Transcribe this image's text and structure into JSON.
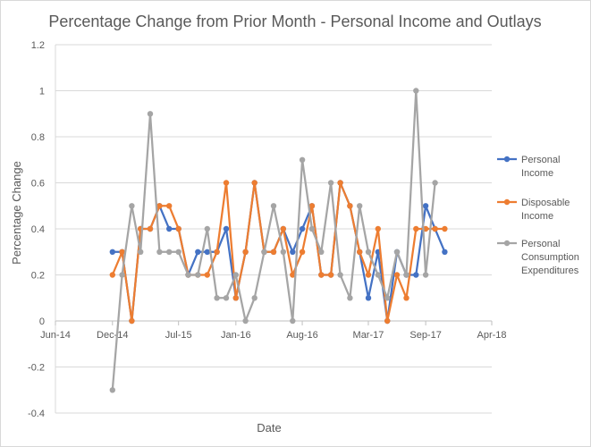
{
  "chart_data": {
    "type": "line",
    "title": "Percentage Change from Prior Month - Personal Income and Outlays",
    "xlabel": "Date",
    "ylabel": "Percentage Change",
    "ylim": [
      -0.4,
      1.2
    ],
    "yticks": [
      -0.4,
      -0.2,
      0,
      0.2,
      0.4,
      0.6,
      0.8,
      1,
      1.2
    ],
    "ytick_labels": [
      "-0.4",
      "-0.2",
      "0",
      "0.2",
      "0.4",
      "0.6",
      "0.8",
      "1",
      "1.2"
    ],
    "xlim": [
      "2014-06-01",
      "2018-04-01"
    ],
    "xticks": [
      "2014-06-01",
      "2014-12-01",
      "2015-07-01",
      "2016-01-01",
      "2016-08-01",
      "2017-03-01",
      "2017-09-01",
      "2018-04-01"
    ],
    "xtick_labels": [
      "Jun-14",
      "Dec-14",
      "Jul-15",
      "Jan-16",
      "Aug-16",
      "Mar-17",
      "Sep-17",
      "Apr-18"
    ],
    "grid": "horizontal",
    "legend_position": "right",
    "x": [
      "2014-12-01",
      "2015-01-01",
      "2015-02-01",
      "2015-03-01",
      "2015-04-01",
      "2015-05-01",
      "2015-06-01",
      "2015-07-01",
      "2015-08-01",
      "2015-09-01",
      "2015-10-01",
      "2015-11-01",
      "2015-12-01",
      "2016-01-01",
      "2016-02-01",
      "2016-03-01",
      "2016-04-01",
      "2016-05-01",
      "2016-06-01",
      "2016-07-01",
      "2016-08-01",
      "2016-09-01",
      "2016-10-01",
      "2016-11-01",
      "2016-12-01",
      "2017-01-01",
      "2017-02-01",
      "2017-03-01",
      "2017-04-01",
      "2017-05-01",
      "2017-06-01",
      "2017-07-01",
      "2017-08-01",
      "2017-09-01",
      "2017-10-01",
      "2017-11-01"
    ],
    "series": [
      {
        "name": "Personal Income",
        "color": "#4472c4",
        "values": [
          0.3,
          0.3,
          0.0,
          0.4,
          0.4,
          0.5,
          0.4,
          0.4,
          0.2,
          0.3,
          0.3,
          0.3,
          0.4,
          0.1,
          0.3,
          0.6,
          0.3,
          0.3,
          0.4,
          0.3,
          0.4,
          0.5,
          0.2,
          0.2,
          0.6,
          0.5,
          0.3,
          0.1,
          0.3,
          0.0,
          0.3,
          0.2,
          0.2,
          0.5,
          0.4,
          0.3
        ]
      },
      {
        "name": "Disposable Income",
        "color": "#ed7d31",
        "values": [
          0.2,
          0.3,
          0.0,
          0.4,
          0.4,
          0.5,
          0.5,
          0.4,
          0.2,
          0.2,
          0.2,
          0.3,
          0.6,
          0.1,
          0.3,
          0.6,
          0.3,
          0.3,
          0.4,
          0.2,
          0.3,
          0.5,
          0.2,
          0.2,
          0.6,
          0.5,
          0.3,
          0.2,
          0.4,
          0.0,
          0.2,
          0.1,
          0.4,
          0.4,
          0.4,
          0.4
        ]
      },
      {
        "name": "Personal Consumption Expenditures",
        "color": "#a5a5a5",
        "values": [
          -0.3,
          0.2,
          0.5,
          0.3,
          0.9,
          0.3,
          0.3,
          0.3,
          0.2,
          0.2,
          0.4,
          0.1,
          0.1,
          0.2,
          0.0,
          0.1,
          0.3,
          0.5,
          0.3,
          0.0,
          0.7,
          0.4,
          0.3,
          0.6,
          0.2,
          0.1,
          0.5,
          0.3,
          0.2,
          0.1,
          0.3,
          0.2,
          1.0,
          0.2,
          0.6,
          null
        ]
      }
    ],
    "legend_lines": [
      [
        "Personal",
        "Income"
      ],
      [
        "Disposable",
        "Income"
      ],
      [
        "Personal",
        "Consumption",
        "Expenditures"
      ]
    ]
  }
}
